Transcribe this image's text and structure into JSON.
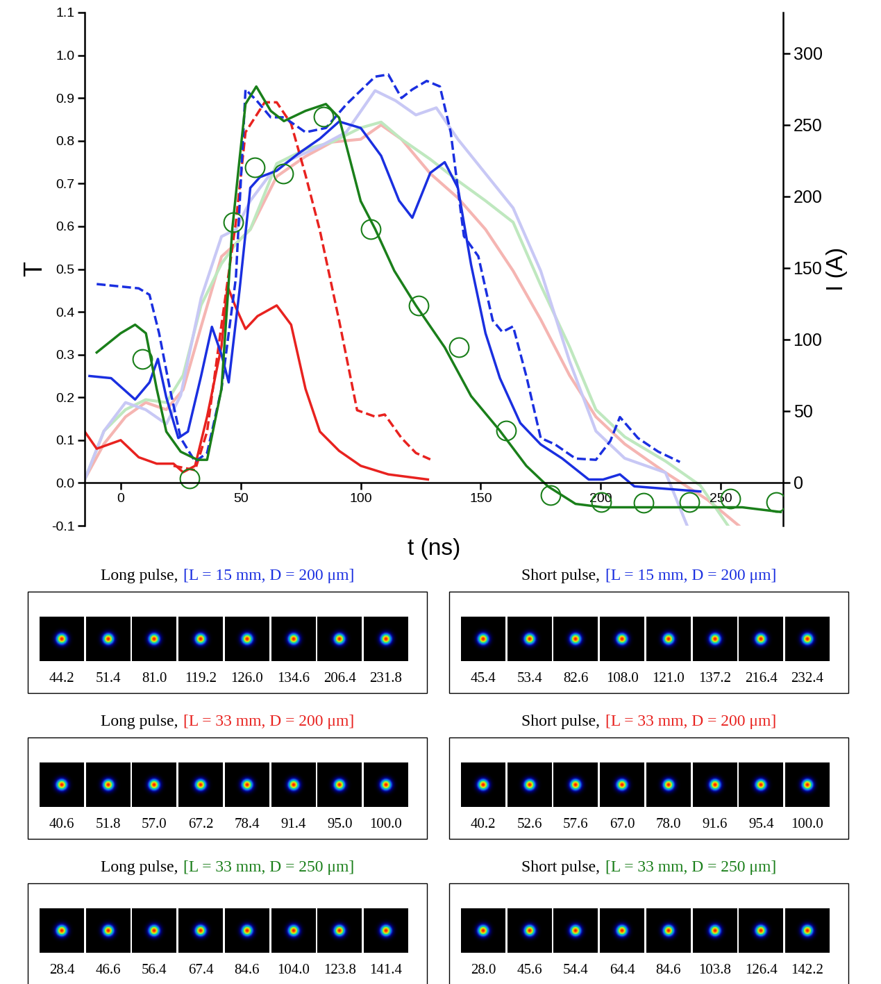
{
  "chart_data": {
    "type": "line",
    "x_label": "t (ns)",
    "y_label": "T",
    "y2_label": "I (A)",
    "xlim": [
      -15,
      276
    ],
    "xticks": [
      0,
      50,
      100,
      150,
      200,
      250
    ],
    "ylim": [
      -0.1,
      1.1
    ],
    "yticks": [
      -0.1,
      0.0,
      0.1,
      0.2,
      0.3,
      0.4,
      0.5,
      0.6,
      0.7,
      0.8,
      0.9,
      1.0,
      1.1
    ],
    "y2lim": [
      -30.1,
      328.6
    ],
    "y2ticks": [
      0,
      50,
      100,
      150,
      200,
      250,
      300
    ],
    "series": [
      {
        "color": "#f5b5b2",
        "line_style": "solid",
        "axis": "y2",
        "x": [
          -15,
          -7,
          2,
          10.4,
          19,
          26,
          33.5,
          42,
          48,
          54,
          65,
          77,
          88,
          100,
          108.5,
          117,
          129,
          140.5,
          152,
          163.5,
          175,
          187,
          198,
          210,
          227,
          244.5,
          257.5
        ],
        "values": [
          2.4,
          27,
          46,
          56,
          51,
          65,
          109,
          158,
          167,
          177,
          214,
          228,
          238,
          240,
          250,
          240,
          216,
          199,
          177,
          148,
          114,
          75,
          46,
          27,
          7,
          -12,
          -30
        ]
      },
      {
        "color": "#bfe8bf",
        "line_style": "solid",
        "axis": "y2",
        "x": [
          -15,
          -7,
          2,
          10.4,
          19,
          26,
          33.5,
          42,
          48,
          54,
          65,
          77,
          88,
          100,
          108.5,
          117,
          129,
          140.5,
          152,
          163.5,
          175,
          187,
          198,
          210,
          227,
          241.5,
          253
        ],
        "values": [
          2,
          36,
          51,
          58,
          56,
          75,
          124,
          153,
          167,
          177,
          223,
          233,
          238,
          248,
          252,
          240,
          226,
          211,
          197,
          182,
          138,
          95,
          51,
          32,
          15,
          -2,
          -30
        ]
      },
      {
        "color": "#c8c8f5",
        "line_style": "solid",
        "axis": "y2",
        "x": [
          -15,
          -7,
          2,
          10.4,
          19,
          25,
          33.5,
          42,
          48,
          54,
          62.5,
          71,
          83,
          94,
          106,
          114.5,
          123,
          131.5,
          140.5,
          152,
          163.5,
          175,
          187,
          198,
          210,
          227,
          236
        ],
        "values": [
          2,
          36,
          56,
          51,
          41,
          61,
          129,
          172,
          177,
          197,
          216,
          226,
          235,
          245,
          274,
          267,
          257,
          262,
          240,
          216,
          192,
          148,
          85,
          36,
          17,
          7,
          -30
        ]
      },
      {
        "color": "#e8221f",
        "line_style": "solid",
        "x": [
          -15,
          -10,
          0,
          7.5,
          15,
          22,
          26,
          31,
          36,
          42,
          44.5,
          48,
          52,
          57,
          65,
          71,
          77,
          83,
          91,
          100,
          111.5,
          128
        ],
        "values": [
          0.12,
          0.08,
          0.1,
          0.06,
          0.045,
          0.045,
          0.025,
          0.04,
          0.155,
          0.32,
          0.46,
          0.41,
          0.36,
          0.39,
          0.415,
          0.37,
          0.22,
          0.12,
          0.075,
          0.04,
          0.02,
          0.008
        ]
      },
      {
        "color": "#e8221f",
        "line_style": "dashed",
        "x": [
          22,
          31,
          36,
          42,
          48,
          52,
          60,
          65,
          71,
          77,
          83,
          91,
          98.5,
          106,
          110,
          117,
          123,
          129
        ],
        "values": [
          0.04,
          0.03,
          0.12,
          0.37,
          0.61,
          0.82,
          0.89,
          0.89,
          0.84,
          0.72,
          0.59,
          0.38,
          0.17,
          0.155,
          0.16,
          0.105,
          0.07,
          0.055
        ]
      },
      {
        "color": "#1a2fe0",
        "line_style": "solid",
        "x": [
          -13,
          -4,
          6,
          12,
          15.5,
          19,
          24,
          28,
          33.5,
          38,
          42,
          45,
          49.5,
          54,
          58,
          65,
          74,
          83,
          91,
          100,
          108.5,
          116,
          121.5,
          129,
          135,
          140.5,
          146,
          152,
          158,
          166.5,
          175,
          184,
          195,
          201,
          208,
          214,
          241.5
        ],
        "values": [
          0.25,
          0.245,
          0.195,
          0.235,
          0.29,
          0.2,
          0.105,
          0.12,
          0.25,
          0.365,
          0.3,
          0.235,
          0.45,
          0.69,
          0.715,
          0.73,
          0.77,
          0.805,
          0.845,
          0.83,
          0.765,
          0.66,
          0.62,
          0.725,
          0.75,
          0.69,
          0.51,
          0.35,
          0.245,
          0.14,
          0.09,
          0.057,
          0.008,
          0.008,
          0.02,
          -0.008,
          -0.02
        ]
      },
      {
        "color": "#1a2fe0",
        "line_style": "dashed",
        "x": [
          -10,
          7.5,
          12,
          16,
          20.5,
          25,
          31,
          36,
          42,
          48,
          52,
          56.5,
          62.5,
          68,
          77,
          85.5,
          94,
          106,
          111.5,
          117,
          121.5,
          127.5,
          133,
          137.5,
          143,
          149,
          155,
          159,
          163.5,
          169,
          175,
          181,
          189.5,
          198,
          204,
          208,
          215.5,
          224,
          233
        ],
        "values": [
          0.465,
          0.455,
          0.44,
          0.35,
          0.22,
          0.105,
          0.05,
          0.07,
          0.22,
          0.48,
          0.92,
          0.895,
          0.855,
          0.855,
          0.82,
          0.83,
          0.885,
          0.95,
          0.955,
          0.9,
          0.92,
          0.94,
          0.927,
          0.82,
          0.577,
          0.53,
          0.38,
          0.353,
          0.366,
          0.25,
          0.105,
          0.09,
          0.057,
          0.054,
          0.098,
          0.154,
          0.105,
          0.073,
          0.049
        ]
      },
      {
        "color": "#1a7f1a",
        "line_style": "solid",
        "x": [
          -10,
          0,
          6,
          10.5,
          15,
          19,
          25,
          32,
          36,
          42,
          46.5,
          49.5,
          52,
          56.5,
          62.5,
          68,
          77,
          85.5,
          91,
          100,
          106,
          114,
          123,
          135,
          146,
          158,
          169,
          178,
          189.5,
          201,
          239,
          259,
          275
        ],
        "values": [
          0.305,
          0.35,
          0.37,
          0.35,
          0.22,
          0.12,
          0.073,
          0.054,
          0.054,
          0.22,
          0.594,
          0.756,
          0.886,
          0.927,
          0.87,
          0.846,
          0.87,
          0.886,
          0.854,
          0.659,
          0.594,
          0.496,
          0.415,
          0.317,
          0.203,
          0.122,
          0.04,
          -0.008,
          -0.049,
          -0.057,
          -0.057,
          -0.057,
          -0.068
        ]
      },
      {
        "color": "#1a7f1a",
        "line_style": "none",
        "marker": "o",
        "x": [
          9,
          28.6,
          47,
          56,
          67.6,
          84.4,
          104.3,
          124,
          141,
          160.7,
          179,
          200.3,
          218,
          237,
          254,
          273
        ],
        "values": [
          0.29,
          0.011,
          0.61,
          0.738,
          0.723,
          0.857,
          0.594,
          0.415,
          0.317,
          0.122,
          -0.028,
          -0.044,
          -0.046,
          -0.044,
          -0.037,
          -0.044
        ]
      }
    ]
  },
  "panels": [
    {
      "label": "Long pulse,",
      "parameters": "[L = 15 mm, D = 200 μm]",
      "color": "#1a2fe0",
      "times": [
        44.2,
        51.4,
        81.0,
        119.2,
        126.0,
        134.6,
        206.4,
        231.8
      ]
    },
    {
      "label": "Short pulse,",
      "parameters": "[L = 15 mm, D = 200 μm]",
      "color": "#1a2fe0",
      "times": [
        45.4,
        53.4,
        82.6,
        108.0,
        121.0,
        137.2,
        216.4,
        232.4
      ]
    },
    {
      "label": "Long pulse,",
      "parameters": "[L = 33 mm, D = 200 μm]",
      "color": "#e8221f",
      "times": [
        40.6,
        51.8,
        57.0,
        67.2,
        78.4,
        91.4,
        95.0,
        100.0
      ]
    },
    {
      "label": "Short pulse,",
      "parameters": "[L = 33 mm, D = 200 μm]",
      "color": "#e8221f",
      "times": [
        40.2,
        52.6,
        57.6,
        67.0,
        78.0,
        91.6,
        95.4,
        100.0
      ]
    },
    {
      "label": "Long pulse,",
      "parameters": "[L = 33 mm, D = 250 μm]",
      "color": "#1a7f1a",
      "times": [
        28.4,
        46.6,
        56.4,
        67.4,
        84.6,
        104.0,
        123.8,
        141.4
      ]
    },
    {
      "label": "Short pulse,",
      "parameters": "[L = 33 mm, D = 250 μm]",
      "color": "#1a7f1a",
      "times": [
        28.0,
        45.6,
        54.4,
        64.4,
        84.6,
        103.8,
        126.4,
        142.2
      ]
    }
  ]
}
